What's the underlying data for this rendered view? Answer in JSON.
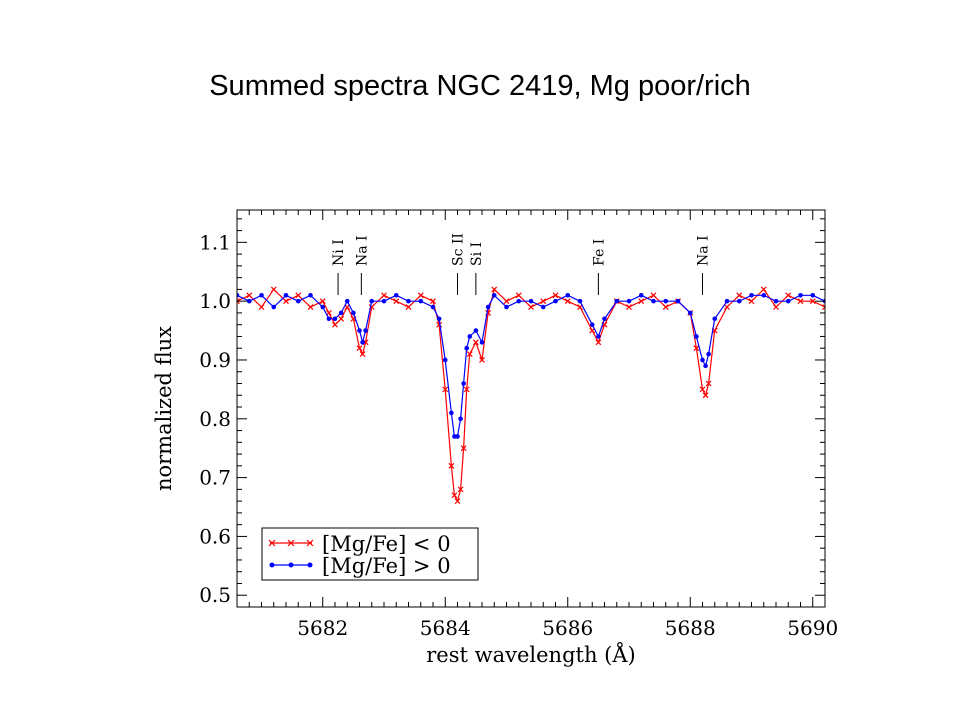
{
  "slide": {
    "title": "Summed spectra NGC 2419, Mg poor/rich"
  },
  "chart_data": {
    "type": "line",
    "xlabel": "rest wavelength (Å)",
    "ylabel": "normalized flux",
    "xlim": [
      5680.6,
      5690.2
    ],
    "ylim": [
      0.48,
      1.155
    ],
    "xticks": [
      5682,
      5684,
      5686,
      5688,
      5690
    ],
    "xtick_labels": [
      "5682",
      "5684",
      "5686",
      "5688",
      "5690"
    ],
    "yticks": [
      0.5,
      0.6,
      0.7,
      0.8,
      0.9,
      1.0,
      1.1
    ],
    "ytick_labels": [
      "0.5",
      "0.6",
      "0.7",
      "0.8",
      "0.9",
      "1.0",
      "1.1"
    ],
    "grid": false,
    "legend_position": "bottom-left",
    "line_labels": [
      {
        "text": "Ni I",
        "x": 5682.25
      },
      {
        "text": "Na I",
        "x": 5682.63
      },
      {
        "text": "Sc II",
        "x": 5684.2
      },
      {
        "text": "Si I",
        "x": 5684.5
      },
      {
        "text": "Fe I",
        "x": 5686.5
      },
      {
        "text": "Na I",
        "x": 5688.2
      }
    ],
    "series": [
      {
        "name": "[Mg/Fe] < 0",
        "color": "#ff0000",
        "marker": "x",
        "x": [
          5680.6,
          5680.8,
          5681.0,
          5681.2,
          5681.4,
          5681.6,
          5681.8,
          5682.0,
          5682.1,
          5682.2,
          5682.3,
          5682.4,
          5682.5,
          5682.6,
          5682.65,
          5682.7,
          5682.8,
          5683.0,
          5683.2,
          5683.4,
          5683.6,
          5683.8,
          5683.9,
          5684.0,
          5684.1,
          5684.15,
          5684.2,
          5684.25,
          5684.3,
          5684.35,
          5684.4,
          5684.5,
          5684.6,
          5684.7,
          5684.8,
          5685.0,
          5685.2,
          5685.4,
          5685.6,
          5685.8,
          5686.0,
          5686.2,
          5686.4,
          5686.5,
          5686.6,
          5686.8,
          5687.0,
          5687.2,
          5687.4,
          5687.6,
          5687.8,
          5688.0,
          5688.1,
          5688.2,
          5688.25,
          5688.3,
          5688.4,
          5688.6,
          5688.8,
          5689.0,
          5689.2,
          5689.4,
          5689.6,
          5689.8,
          5690.0,
          5690.2
        ],
        "y": [
          1.0,
          1.01,
          0.99,
          1.02,
          1.0,
          1.01,
          0.99,
          1.0,
          0.98,
          0.96,
          0.97,
          0.99,
          0.97,
          0.92,
          0.91,
          0.93,
          0.99,
          1.01,
          1.0,
          0.99,
          1.01,
          1.0,
          0.96,
          0.85,
          0.72,
          0.67,
          0.66,
          0.68,
          0.75,
          0.85,
          0.91,
          0.93,
          0.9,
          0.98,
          1.02,
          1.0,
          1.01,
          0.99,
          1.0,
          1.01,
          1.0,
          0.99,
          0.95,
          0.93,
          0.96,
          1.0,
          0.99,
          1.0,
          1.01,
          0.99,
          1.0,
          0.98,
          0.92,
          0.85,
          0.84,
          0.86,
          0.95,
          0.99,
          1.01,
          1.0,
          1.02,
          0.99,
          1.01,
          1.0,
          1.0,
          0.99
        ]
      },
      {
        "name": "[Mg/Fe] > 0",
        "color": "#0000ff",
        "marker": "dot",
        "x": [
          5680.6,
          5680.8,
          5681.0,
          5681.2,
          5681.4,
          5681.6,
          5681.8,
          5682.0,
          5682.1,
          5682.2,
          5682.3,
          5682.4,
          5682.5,
          5682.6,
          5682.65,
          5682.7,
          5682.8,
          5683.0,
          5683.2,
          5683.4,
          5683.6,
          5683.8,
          5683.9,
          5684.0,
          5684.1,
          5684.15,
          5684.2,
          5684.25,
          5684.3,
          5684.35,
          5684.4,
          5684.5,
          5684.6,
          5684.7,
          5684.8,
          5685.0,
          5685.2,
          5685.4,
          5685.6,
          5685.8,
          5686.0,
          5686.2,
          5686.4,
          5686.5,
          5686.6,
          5686.8,
          5687.0,
          5687.2,
          5687.4,
          5687.6,
          5687.8,
          5688.0,
          5688.1,
          5688.2,
          5688.25,
          5688.3,
          5688.4,
          5688.6,
          5688.8,
          5689.0,
          5689.2,
          5689.4,
          5689.6,
          5689.8,
          5690.0,
          5690.2
        ],
        "y": [
          1.01,
          1.0,
          1.01,
          0.99,
          1.01,
          1.0,
          1.01,
          0.99,
          0.97,
          0.97,
          0.98,
          1.0,
          0.98,
          0.95,
          0.93,
          0.95,
          1.0,
          1.0,
          1.01,
          1.0,
          1.0,
          0.99,
          0.97,
          0.9,
          0.81,
          0.77,
          0.77,
          0.8,
          0.86,
          0.92,
          0.94,
          0.95,
          0.93,
          0.99,
          1.01,
          0.99,
          1.0,
          1.0,
          0.99,
          1.0,
          1.01,
          1.0,
          0.96,
          0.94,
          0.97,
          1.0,
          1.0,
          1.01,
          1.0,
          1.0,
          1.0,
          0.98,
          0.94,
          0.9,
          0.89,
          0.91,
          0.97,
          1.0,
          1.0,
          1.01,
          1.01,
          1.0,
          1.0,
          1.01,
          1.01,
          1.0
        ]
      }
    ]
  }
}
